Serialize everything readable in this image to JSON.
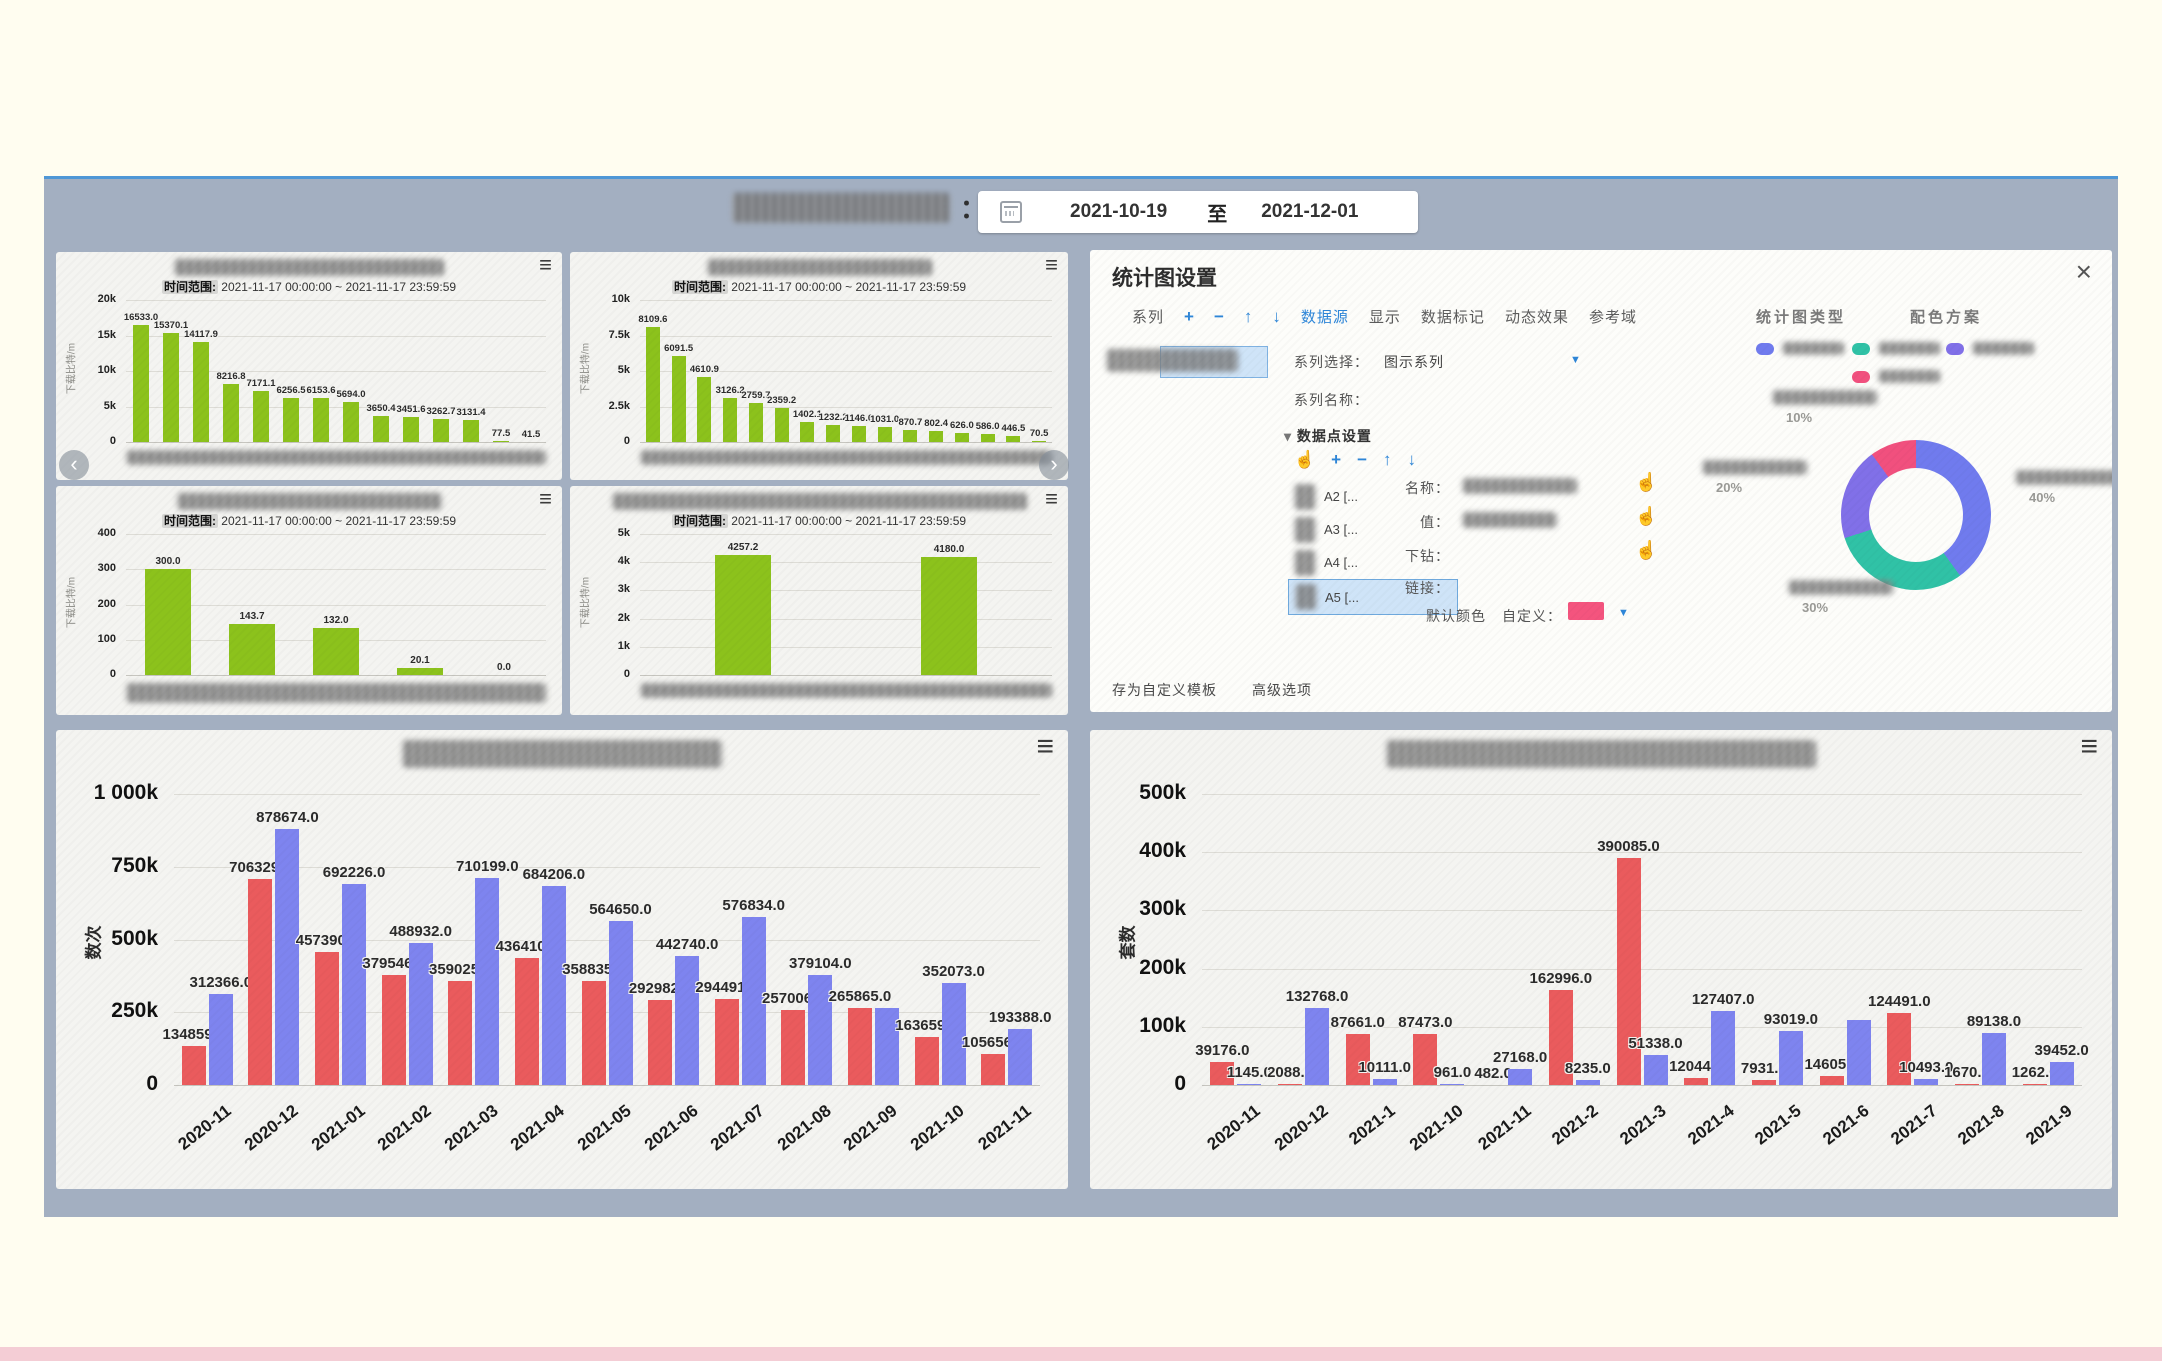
{
  "header": {
    "colon": "：",
    "date_from": "2021-10-19",
    "date_separator": "至",
    "date_to": "2021-12-01"
  },
  "icons": {
    "menu": "≡",
    "caret_down": "▼",
    "section_caret": "▾",
    "carousel_prev": "‹",
    "carousel_next": "›"
  },
  "small_chart_common": {
    "time_range_label": "时间范围:",
    "time_range_value": "2021-11-17 00:00:00 ~ 2021-11-17 23:59:59",
    "ylabel": "下载比特/m"
  },
  "settings_panel": {
    "title": "统计图设置",
    "close_glyph": "×",
    "tabs_leading": [
      "系列"
    ],
    "toolbar_icons": [
      {
        "glyph": "+",
        "name": "add-icon"
      },
      {
        "glyph": "−",
        "name": "remove-icon"
      },
      {
        "glyph": "↑",
        "name": "move-up-icon"
      },
      {
        "glyph": "↓",
        "name": "move-down-icon"
      }
    ],
    "tabs": [
      {
        "label": "数据源",
        "active": true
      },
      {
        "label": "显示",
        "active": false
      },
      {
        "label": "数据标记",
        "active": false
      },
      {
        "label": "动态效果",
        "active": false
      },
      {
        "label": "参考域",
        "active": false
      }
    ],
    "form": {
      "series_select_label": "系列选择：",
      "series_select_value": "图示系列",
      "series_name_label": "系列名称：",
      "datapoint_section_label": "数据点设置",
      "hand_glyph": "☝",
      "name_label": "名称：",
      "value_label": "值：",
      "drill_label": "下钻：",
      "link_label": "链接：",
      "default_color_label": "默认颜色",
      "custom_label": "自定义：",
      "default_color": "#f4547e"
    },
    "datapoint_list": [
      {
        "label": "A2 [...",
        "selected": false
      },
      {
        "label": "A3 [...",
        "selected": false
      },
      {
        "label": "A4 [...",
        "selected": false
      },
      {
        "label": "A5 [...",
        "selected": true
      }
    ],
    "footer_links": [
      "存为自定义模板",
      "高级选项"
    ],
    "right": {
      "chart_type_label": "统计图类型",
      "color_scheme_label": "配色方案",
      "legend": [
        {
          "color": "#707bee",
          "label_redacted": true
        },
        {
          "color": "#30c2a6",
          "label_redacted": true
        },
        {
          "color": "#8170e8",
          "label_redacted": true
        },
        {
          "color": "#f1507e",
          "label_redacted": true
        }
      ]
    }
  },
  "chart_data": [
    {
      "container": "small1",
      "type": "bar",
      "title_redacted": true,
      "x_labels_redacted": true,
      "ylabel": "下载比特/m",
      "ylim": [
        0,
        20000
      ],
      "ytick_labels": [
        "0",
        "5k",
        "10k",
        "15k",
        "20k"
      ],
      "bar_color": "#8cc21c",
      "values": [
        16533.0,
        15370.1,
        14117.9,
        8216.8,
        7171.1,
        6256.5,
        6153.6,
        5694.0,
        3650.4,
        3451.6,
        3262.7,
        3131.4,
        77.5,
        41.5
      ]
    },
    {
      "container": "small2",
      "type": "bar",
      "title_redacted": true,
      "x_labels_redacted": true,
      "ylabel": "下载比特/m",
      "ylim": [
        0,
        10000
      ],
      "ytick_labels": [
        "0",
        "2.5k",
        "5k",
        "7.5k",
        "10k"
      ],
      "bar_color": "#8cc21c",
      "values": [
        8109.6,
        6091.5,
        4610.9,
        3126.2,
        2759.7,
        2359.2,
        1402.1,
        1232.2,
        1146.0,
        1031.0,
        870.7,
        802.4,
        626.0,
        586.0,
        446.5,
        70.5
      ]
    },
    {
      "container": "small3",
      "type": "bar",
      "title_redacted": true,
      "x_labels_redacted": true,
      "ylabel": "下载比特/m",
      "ylim": [
        0,
        400
      ],
      "ytick_labels": [
        "0",
        "100",
        "200",
        "300",
        "400"
      ],
      "bar_color": "#8cc21c",
      "values": [
        300.0,
        143.7,
        132.0,
        20.1,
        0.0
      ]
    },
    {
      "container": "small4",
      "type": "bar",
      "title_redacted": true,
      "x_labels_redacted": true,
      "ylabel": "下载比特/m",
      "ylim": [
        0,
        5000
      ],
      "ytick_labels": [
        "0",
        "1k",
        "2k",
        "3k",
        "4k",
        "5k"
      ],
      "bar_color": "#8cc21c",
      "values": [
        4257.2,
        4180.0
      ]
    },
    {
      "container": "donut",
      "type": "pie",
      "labels_redacted": true,
      "slices": [
        {
          "pct": 40,
          "label": "40%",
          "color": "#707bee"
        },
        {
          "pct": 30,
          "label": "30%",
          "color": "#30c2a6"
        },
        {
          "pct": 20,
          "label": "20%",
          "color": "#8170e8"
        },
        {
          "pct": 10,
          "label": "10%",
          "color": "#f1507e"
        }
      ]
    },
    {
      "container": "big-left",
      "type": "bar",
      "grouped": true,
      "title_redacted": true,
      "ylabel": "数次",
      "ylim": [
        0,
        1000000
      ],
      "ytick_labels": [
        "0",
        "250k",
        "500k",
        "750k",
        "1 000k"
      ],
      "categories": [
        "2020-11",
        "2020-12",
        "2021-01",
        "2021-02",
        "2021-03",
        "2021-04",
        "2021-05",
        "2021-06",
        "2021-07",
        "2021-08",
        "2021-09",
        "2021-10",
        "2021-11"
      ],
      "series": [
        {
          "key": "red",
          "color": "#ea5b5d",
          "values": [
            134859.0,
            706329.0,
            457390.0,
            379546.0,
            359025.0,
            436410.0,
            358835.0,
            292982.0,
            294491.0,
            257006.0,
            265865.0,
            163659.0,
            105656.0
          ],
          "hidden_label_indices": []
        },
        {
          "key": "blue",
          "color": "#7e84ef",
          "values": [
            312366.0,
            878674.0,
            692226.0,
            488932.0,
            710199.0,
            684206.0,
            564650.0,
            442740.0,
            576834.0,
            379104.0,
            265865.0,
            352073.0,
            193388.0
          ],
          "hidden_label_indices": [
            10
          ]
        }
      ]
    },
    {
      "container": "big-right",
      "type": "bar",
      "grouped": true,
      "title_redacted": true,
      "ylabel": "套数",
      "ylim": [
        0,
        500000
      ],
      "ytick_labels": [
        "0",
        "100k",
        "200k",
        "300k",
        "400k",
        "500k"
      ],
      "categories": [
        "2020-11",
        "2020-12",
        "2021-1",
        "2021-10",
        "2021-11",
        "2021-2",
        "2021-3",
        "2021-4",
        "2021-5",
        "2021-6",
        "2021-7",
        "2021-8",
        "2021-9"
      ],
      "series": [
        {
          "key": "red",
          "color": "#ea5b5d",
          "values": [
            39176.0,
            2088.0,
            87661.0,
            87473.0,
            482.0,
            162996.0,
            390085.0,
            12044.0,
            7931.0,
            14605.0,
            124491.0,
            1670.0,
            1262.0
          ],
          "hidden_label_indices": []
        },
        {
          "key": "blue",
          "color": "#7e84ef",
          "values": [
            1145.0,
            132768.0,
            10111.0,
            961.0,
            27168.0,
            8235.0,
            51338.0,
            127407.0,
            93019.0,
            112000.0,
            10493.0,
            89138.0,
            39452.0
          ],
          "hidden_label_indices": [
            9
          ],
          "estimated_value_indices": [
            9
          ]
        }
      ]
    }
  ]
}
